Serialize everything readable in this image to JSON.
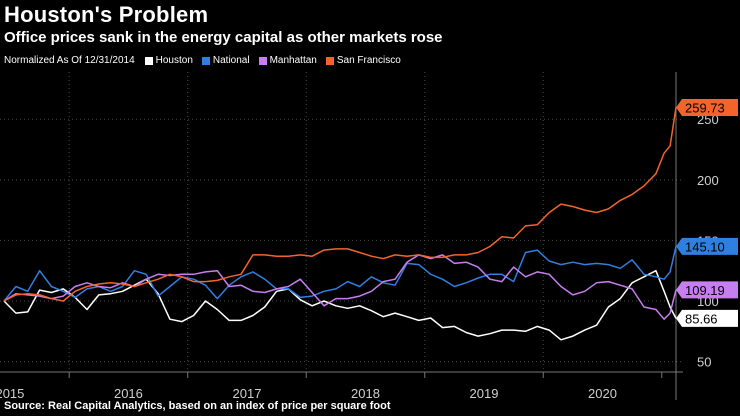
{
  "header": {
    "title": "Houston's Problem",
    "subtitle": "Office prices sank in the energy capital as other markets rose"
  },
  "legend": {
    "note": "Normalized As Of 12/31/2014",
    "items": [
      {
        "name": "Houston",
        "color": "#ffffff"
      },
      {
        "name": "National",
        "color": "#2f7fe0"
      },
      {
        "name": "Manhattan",
        "color": "#c77ef0"
      },
      {
        "name": "San Francisco",
        "color": "#f2642c"
      }
    ]
  },
  "source": "Source: Real Capital Analytics, based on an index of price per square foot",
  "chart_data": {
    "type": "line",
    "title": "Houston's Problem",
    "subtitle": "Office prices sank in the energy capital as other markets rose",
    "x_label": "",
    "y_label": "",
    "x_ticks": [
      "2015",
      "2016",
      "2017",
      "2018",
      "2019",
      "2020"
    ],
    "x_range": [
      2014.95,
      2020.62
    ],
    "y_range": [
      48,
      270
    ],
    "y_ticks": [
      50,
      100,
      150,
      200,
      250
    ],
    "grid": true,
    "end_labels": [
      {
        "text": "259.73",
        "series": "San Francisco",
        "value": 259.73
      },
      {
        "text": "145.10",
        "series": "National",
        "value": 145.1
      },
      {
        "text": "109.19",
        "series": "Manhattan",
        "value": 109.19
      },
      {
        "text": "85.66",
        "series": "Houston",
        "value": 85.66
      }
    ],
    "series": [
      {
        "name": "Houston",
        "color": "#ffffff",
        "points": [
          [
            2014.95,
            100
          ],
          [
            2015.05,
            90
          ],
          [
            2015.15,
            91
          ],
          [
            2015.25,
            109
          ],
          [
            2015.35,
            107
          ],
          [
            2015.45,
            110
          ],
          [
            2015.55,
            103
          ],
          [
            2015.65,
            93
          ],
          [
            2015.75,
            105
          ],
          [
            2015.85,
            106
          ],
          [
            2015.95,
            108
          ],
          [
            2016.05,
            113
          ],
          [
            2016.15,
            118
          ],
          [
            2016.25,
            106
          ],
          [
            2016.35,
            85
          ],
          [
            2016.45,
            83
          ],
          [
            2016.55,
            88
          ],
          [
            2016.65,
            100
          ],
          [
            2016.75,
            93
          ],
          [
            2016.85,
            84
          ],
          [
            2016.95,
            84
          ],
          [
            2017.05,
            88
          ],
          [
            2017.15,
            95
          ],
          [
            2017.25,
            108
          ],
          [
            2017.35,
            110
          ],
          [
            2017.45,
            101
          ],
          [
            2017.55,
            96
          ],
          [
            2017.65,
            100
          ],
          [
            2017.75,
            96
          ],
          [
            2017.85,
            94
          ],
          [
            2017.95,
            96
          ],
          [
            2018.05,
            92
          ],
          [
            2018.15,
            87
          ],
          [
            2018.25,
            90
          ],
          [
            2018.35,
            87
          ],
          [
            2018.45,
            84
          ],
          [
            2018.55,
            86
          ],
          [
            2018.65,
            78
          ],
          [
            2018.75,
            79
          ],
          [
            2018.85,
            74
          ],
          [
            2018.95,
            71
          ],
          [
            2019.05,
            73
          ],
          [
            2019.15,
            76
          ],
          [
            2019.25,
            76
          ],
          [
            2019.35,
            75
          ],
          [
            2019.45,
            79
          ],
          [
            2019.55,
            76
          ],
          [
            2019.65,
            68
          ],
          [
            2019.75,
            71
          ],
          [
            2019.85,
            76
          ],
          [
            2019.95,
            80
          ],
          [
            2020.05,
            95
          ],
          [
            2020.15,
            102
          ],
          [
            2020.25,
            115
          ],
          [
            2020.35,
            120
          ],
          [
            2020.45,
            125
          ],
          [
            2020.52,
            108
          ],
          [
            2020.57,
            95
          ],
          [
            2020.62,
            85.66
          ]
        ]
      },
      {
        "name": "National",
        "color": "#2f7fe0",
        "points": [
          [
            2014.95,
            100
          ],
          [
            2015.05,
            112
          ],
          [
            2015.15,
            108
          ],
          [
            2015.25,
            125
          ],
          [
            2015.35,
            112
          ],
          [
            2015.45,
            108
          ],
          [
            2015.55,
            103
          ],
          [
            2015.65,
            110
          ],
          [
            2015.75,
            112
          ],
          [
            2015.85,
            108
          ],
          [
            2015.95,
            112
          ],
          [
            2016.05,
            125
          ],
          [
            2016.15,
            122
          ],
          [
            2016.25,
            104
          ],
          [
            2016.35,
            112
          ],
          [
            2016.45,
            120
          ],
          [
            2016.55,
            118
          ],
          [
            2016.65,
            113
          ],
          [
            2016.75,
            102
          ],
          [
            2016.85,
            113
          ],
          [
            2016.95,
            120
          ],
          [
            2017.05,
            124
          ],
          [
            2017.15,
            118
          ],
          [
            2017.25,
            110
          ],
          [
            2017.35,
            110
          ],
          [
            2017.45,
            103
          ],
          [
            2017.55,
            104
          ],
          [
            2017.65,
            108
          ],
          [
            2017.75,
            110
          ],
          [
            2017.85,
            116
          ],
          [
            2017.95,
            112
          ],
          [
            2018.05,
            120
          ],
          [
            2018.15,
            115
          ],
          [
            2018.25,
            113
          ],
          [
            2018.35,
            131
          ],
          [
            2018.45,
            130
          ],
          [
            2018.55,
            122
          ],
          [
            2018.65,
            118
          ],
          [
            2018.75,
            112
          ],
          [
            2018.85,
            115
          ],
          [
            2018.95,
            119
          ],
          [
            2019.05,
            122
          ],
          [
            2019.15,
            122
          ],
          [
            2019.25,
            116
          ],
          [
            2019.35,
            140
          ],
          [
            2019.45,
            142
          ],
          [
            2019.55,
            133
          ],
          [
            2019.65,
            130
          ],
          [
            2019.75,
            132
          ],
          [
            2019.85,
            130
          ],
          [
            2019.95,
            131
          ],
          [
            2020.05,
            130
          ],
          [
            2020.15,
            127
          ],
          [
            2020.25,
            134
          ],
          [
            2020.35,
            122
          ],
          [
            2020.45,
            120
          ],
          [
            2020.52,
            118
          ],
          [
            2020.57,
            124
          ],
          [
            2020.62,
            145.1
          ]
        ]
      },
      {
        "name": "Manhattan",
        "color": "#c77ef0",
        "points": [
          [
            2014.95,
            100
          ],
          [
            2015.05,
            106
          ],
          [
            2015.15,
            105
          ],
          [
            2015.25,
            104
          ],
          [
            2015.35,
            102
          ],
          [
            2015.45,
            104
          ],
          [
            2015.55,
            112
          ],
          [
            2015.65,
            115
          ],
          [
            2015.75,
            112
          ],
          [
            2015.85,
            111
          ],
          [
            2015.95,
            115
          ],
          [
            2016.05,
            112
          ],
          [
            2016.15,
            118
          ],
          [
            2016.25,
            122
          ],
          [
            2016.35,
            121
          ],
          [
            2016.45,
            122
          ],
          [
            2016.55,
            122
          ],
          [
            2016.65,
            124
          ],
          [
            2016.75,
            125
          ],
          [
            2016.85,
            112
          ],
          [
            2016.95,
            113
          ],
          [
            2017.05,
            108
          ],
          [
            2017.15,
            107
          ],
          [
            2017.25,
            110
          ],
          [
            2017.35,
            112
          ],
          [
            2017.45,
            118
          ],
          [
            2017.55,
            107
          ],
          [
            2017.65,
            96
          ],
          [
            2017.75,
            102
          ],
          [
            2017.85,
            102
          ],
          [
            2017.95,
            104
          ],
          [
            2018.05,
            108
          ],
          [
            2018.15,
            116
          ],
          [
            2018.25,
            118
          ],
          [
            2018.35,
            132
          ],
          [
            2018.45,
            138
          ],
          [
            2018.55,
            135
          ],
          [
            2018.65,
            138
          ],
          [
            2018.75,
            131
          ],
          [
            2018.85,
            132
          ],
          [
            2018.95,
            128
          ],
          [
            2019.05,
            118
          ],
          [
            2019.15,
            116
          ],
          [
            2019.25,
            128
          ],
          [
            2019.35,
            120
          ],
          [
            2019.45,
            124
          ],
          [
            2019.55,
            122
          ],
          [
            2019.65,
            112
          ],
          [
            2019.75,
            105
          ],
          [
            2019.85,
            108
          ],
          [
            2019.95,
            115
          ],
          [
            2020.05,
            116
          ],
          [
            2020.15,
            113
          ],
          [
            2020.25,
            110
          ],
          [
            2020.35,
            95
          ],
          [
            2020.45,
            93
          ],
          [
            2020.52,
            85
          ],
          [
            2020.57,
            90
          ],
          [
            2020.62,
            109.19
          ]
        ]
      },
      {
        "name": "San Francisco",
        "color": "#f2642c",
        "points": [
          [
            2014.95,
            100
          ],
          [
            2015.05,
            105
          ],
          [
            2015.15,
            106
          ],
          [
            2015.25,
            105
          ],
          [
            2015.35,
            102
          ],
          [
            2015.45,
            100
          ],
          [
            2015.55,
            108
          ],
          [
            2015.65,
            112
          ],
          [
            2015.75,
            114
          ],
          [
            2015.85,
            115
          ],
          [
            2015.95,
            114
          ],
          [
            2016.05,
            112
          ],
          [
            2016.15,
            115
          ],
          [
            2016.25,
            118
          ],
          [
            2016.35,
            122
          ],
          [
            2016.45,
            120
          ],
          [
            2016.55,
            116
          ],
          [
            2016.65,
            116
          ],
          [
            2016.75,
            117
          ],
          [
            2016.85,
            120
          ],
          [
            2016.95,
            122
          ],
          [
            2017.05,
            138
          ],
          [
            2017.15,
            138
          ],
          [
            2017.25,
            137
          ],
          [
            2017.35,
            137
          ],
          [
            2017.45,
            138
          ],
          [
            2017.55,
            137
          ],
          [
            2017.65,
            142
          ],
          [
            2017.75,
            143
          ],
          [
            2017.85,
            143
          ],
          [
            2017.95,
            140
          ],
          [
            2018.05,
            137
          ],
          [
            2018.15,
            135
          ],
          [
            2018.25,
            138
          ],
          [
            2018.35,
            137
          ],
          [
            2018.45,
            138
          ],
          [
            2018.55,
            136
          ],
          [
            2018.65,
            136
          ],
          [
            2018.75,
            138
          ],
          [
            2018.85,
            138
          ],
          [
            2018.95,
            140
          ],
          [
            2019.05,
            145
          ],
          [
            2019.15,
            153
          ],
          [
            2019.25,
            152
          ],
          [
            2019.35,
            162
          ],
          [
            2019.45,
            163
          ],
          [
            2019.55,
            173
          ],
          [
            2019.65,
            180
          ],
          [
            2019.75,
            178
          ],
          [
            2019.85,
            175
          ],
          [
            2019.95,
            173
          ],
          [
            2020.05,
            176
          ],
          [
            2020.15,
            183
          ],
          [
            2020.25,
            188
          ],
          [
            2020.35,
            195
          ],
          [
            2020.45,
            205
          ],
          [
            2020.52,
            222
          ],
          [
            2020.57,
            228
          ],
          [
            2020.62,
            259.73
          ]
        ]
      }
    ]
  }
}
